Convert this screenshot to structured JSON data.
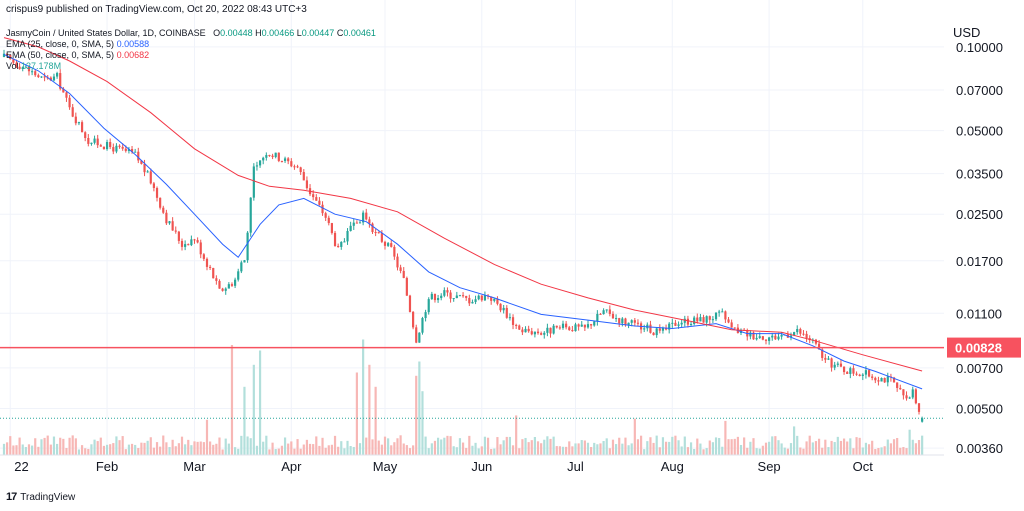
{
  "header": {
    "published_line": "crispus9 published on TradingView.com, Oct 20, 2022 08:43 UTC+3"
  },
  "legend": {
    "symbol_line": "JasmyCoin / United States Dollar, 1D, COINBASE",
    "ohlc": {
      "o_label": "O",
      "o": "0.00448",
      "h_label": "H",
      "h": "0.00466",
      "l_label": "L",
      "l": "0.00447",
      "c_label": "C",
      "c": "0.00461"
    },
    "ema25_label": "EMA (25, close, 0, SMA, 5)",
    "ema25_value": "0.00588",
    "ema50_label": "EMA (50, close, 0, SMA, 5)",
    "ema50_value": "0.00682",
    "vol_label": "Vol",
    "vol_value": "137.178M"
  },
  "footer": {
    "logo_text": "TradingView"
  },
  "colors": {
    "up": "#26a69a",
    "down": "#ef5350",
    "vol_up": "#b2dfdb",
    "vol_down": "#f7b7b5",
    "ema25": "#2962ff",
    "ema50": "#f23645",
    "hline": "#f7525f",
    "last_price_dotted": "#26a69a",
    "grid": "#f0f3fa"
  },
  "chart_data": {
    "type": "candlestick",
    "quote_currency": "USD",
    "y_scale": "log",
    "ylim": [
      0.0034,
      0.125
    ],
    "y_ticks": [
      0.1,
      0.07,
      0.05,
      0.035,
      0.025,
      0.017,
      0.011,
      0.007,
      0.005,
      0.0036
    ],
    "y_tick_labels": [
      "0.10000",
      "0.07000",
      "0.05000",
      "0.03500",
      "0.02500",
      "0.01700",
      "0.01100",
      "0.00700",
      "0.00500",
      "0.00360"
    ],
    "x_ticks": [
      {
        "date": "2022-01-01",
        "label": "22"
      },
      {
        "date": "2022-02-01",
        "label": "Feb"
      },
      {
        "date": "2022-03-01",
        "label": "Mar"
      },
      {
        "date": "2022-04-01",
        "label": "Apr"
      },
      {
        "date": "2022-05-01",
        "label": "May"
      },
      {
        "date": "2022-06-01",
        "label": "Jun"
      },
      {
        "date": "2022-07-01",
        "label": "Jul"
      },
      {
        "date": "2022-08-01",
        "label": "Aug"
      },
      {
        "date": "2022-09-01",
        "label": "Sep"
      },
      {
        "date": "2022-10-01",
        "label": "Oct"
      }
    ],
    "x_range": [
      "2021-12-30",
      "2022-10-27"
    ],
    "horizontal_line": {
      "value": 0.00828,
      "label": "0.00828"
    },
    "last_close": 0.00461,
    "ema_series": [
      {
        "name": "EMA (25, close, 0, SMA, 5)",
        "points": [
          [
            "2021-12-30",
            0.094
          ],
          [
            "2022-01-10",
            0.082
          ],
          [
            "2022-01-20",
            0.068
          ],
          [
            "2022-01-31",
            0.051
          ],
          [
            "2022-02-10",
            0.041
          ],
          [
            "2022-02-20",
            0.032
          ],
          [
            "2022-03-01",
            0.025
          ],
          [
            "2022-03-10",
            0.0195
          ],
          [
            "2022-03-15",
            0.0175
          ],
          [
            "2022-03-22",
            0.023
          ],
          [
            "2022-03-28",
            0.027
          ],
          [
            "2022-04-05",
            0.0285
          ],
          [
            "2022-04-15",
            0.025
          ],
          [
            "2022-04-25",
            0.0235
          ],
          [
            "2022-05-05",
            0.0195
          ],
          [
            "2022-05-15",
            0.0155
          ],
          [
            "2022-05-25",
            0.0136
          ],
          [
            "2022-06-05",
            0.0125
          ],
          [
            "2022-06-20",
            0.0109
          ],
          [
            "2022-07-05",
            0.0104
          ],
          [
            "2022-07-20",
            0.0099
          ],
          [
            "2022-08-01",
            0.0097
          ],
          [
            "2022-08-15",
            0.0101
          ],
          [
            "2022-08-25",
            0.0093
          ],
          [
            "2022-09-05",
            0.0093
          ],
          [
            "2022-09-15",
            0.0084
          ],
          [
            "2022-09-25",
            0.0074
          ],
          [
            "2022-10-05",
            0.0068
          ],
          [
            "2022-10-20",
            0.00588
          ]
        ]
      },
      {
        "name": "EMA (50, close, 0, SMA, 5)",
        "points": [
          [
            "2021-12-30",
            0.108
          ],
          [
            "2022-01-10",
            0.1
          ],
          [
            "2022-01-20",
            0.089
          ],
          [
            "2022-02-01",
            0.075
          ],
          [
            "2022-02-15",
            0.058
          ],
          [
            "2022-03-01",
            0.043
          ],
          [
            "2022-03-15",
            0.0345
          ],
          [
            "2022-03-25",
            0.0315
          ],
          [
            "2022-04-05",
            0.0305
          ],
          [
            "2022-04-20",
            0.0285
          ],
          [
            "2022-05-05",
            0.0255
          ],
          [
            "2022-05-20",
            0.0205
          ],
          [
            "2022-06-05",
            0.0165
          ],
          [
            "2022-06-20",
            0.014
          ],
          [
            "2022-07-05",
            0.0125
          ],
          [
            "2022-07-20",
            0.0113
          ],
          [
            "2022-08-05",
            0.0104
          ],
          [
            "2022-08-20",
            0.0096
          ],
          [
            "2022-09-05",
            0.0094
          ],
          [
            "2022-09-15",
            0.0088
          ],
          [
            "2022-10-01",
            0.0078
          ],
          [
            "2022-10-20",
            0.00682
          ]
        ]
      }
    ],
    "close_path": [
      [
        "2021-12-30",
        0.092
      ],
      [
        "2022-01-05",
        0.085
      ],
      [
        "2022-01-12",
        0.076
      ],
      [
        "2022-01-16",
        0.078
      ],
      [
        "2022-01-20",
        0.06
      ],
      [
        "2022-01-26",
        0.046
      ],
      [
        "2022-02-04",
        0.043
      ],
      [
        "2022-02-10",
        0.041
      ],
      [
        "2022-02-15",
        0.033
      ],
      [
        "2022-02-20",
        0.024
      ],
      [
        "2022-02-25",
        0.0195
      ],
      [
        "2022-03-01",
        0.0205
      ],
      [
        "2022-03-06",
        0.0158
      ],
      [
        "2022-03-09",
        0.0132
      ],
      [
        "2022-03-13",
        0.0142
      ],
      [
        "2022-03-17",
        0.017
      ],
      [
        "2022-03-20",
        0.036
      ],
      [
        "2022-03-24",
        0.042
      ],
      [
        "2022-03-28",
        0.04
      ],
      [
        "2022-04-03",
        0.037
      ],
      [
        "2022-04-07",
        0.03
      ],
      [
        "2022-04-12",
        0.0245
      ],
      [
        "2022-04-16",
        0.0185
      ],
      [
        "2022-04-20",
        0.022
      ],
      [
        "2022-04-24",
        0.0245
      ],
      [
        "2022-04-28",
        0.0215
      ],
      [
        "2022-05-03",
        0.0185
      ],
      [
        "2022-05-07",
        0.0145
      ],
      [
        "2022-05-11",
        0.0089
      ],
      [
        "2022-05-15",
        0.0125
      ],
      [
        "2022-05-20",
        0.013
      ],
      [
        "2022-05-28",
        0.0123
      ],
      [
        "2022-06-03",
        0.0128
      ],
      [
        "2022-06-08",
        0.0113
      ],
      [
        "2022-06-13",
        0.0096
      ],
      [
        "2022-06-20",
        0.0094
      ],
      [
        "2022-06-28",
        0.0098
      ],
      [
        "2022-07-04",
        0.0097
      ],
      [
        "2022-07-10",
        0.0112
      ],
      [
        "2022-07-17",
        0.0102
      ],
      [
        "2022-07-24",
        0.0097
      ],
      [
        "2022-07-28",
        0.0093
      ],
      [
        "2022-08-03",
        0.0103
      ],
      [
        "2022-08-10",
        0.0104
      ],
      [
        "2022-08-17",
        0.0109
      ],
      [
        "2022-08-20",
        0.0097
      ],
      [
        "2022-08-26",
        0.0092
      ],
      [
        "2022-09-02",
        0.009
      ],
      [
        "2022-09-10",
        0.0095
      ],
      [
        "2022-09-15",
        0.0087
      ],
      [
        "2022-09-19",
        0.0074
      ],
      [
        "2022-09-25",
        0.0069
      ],
      [
        "2022-10-03",
        0.0066
      ],
      [
        "2022-10-10",
        0.0063
      ],
      [
        "2022-10-15",
        0.0053
      ],
      [
        "2022-10-17",
        0.0057
      ],
      [
        "2022-10-20",
        0.00461
      ]
    ],
    "volume_spikes": [
      [
        "2022-03-13",
        1.0
      ],
      [
        "2022-03-17",
        0.62
      ],
      [
        "2022-03-20",
        0.82
      ],
      [
        "2022-03-22",
        0.95
      ],
      [
        "2022-04-22",
        0.75
      ],
      [
        "2022-04-24",
        1.05
      ],
      [
        "2022-04-26",
        0.82
      ],
      [
        "2022-04-28",
        0.62
      ],
      [
        "2022-05-11",
        0.72
      ],
      [
        "2022-05-12",
        0.85
      ],
      [
        "2022-05-13",
        0.58
      ],
      [
        "2022-03-05",
        0.32
      ],
      [
        "2022-06-12",
        0.36
      ],
      [
        "2022-07-20",
        0.33
      ],
      [
        "2022-08-18",
        0.31
      ],
      [
        "2022-09-09",
        0.26
      ],
      [
        "2022-10-16",
        0.23
      ]
    ]
  }
}
